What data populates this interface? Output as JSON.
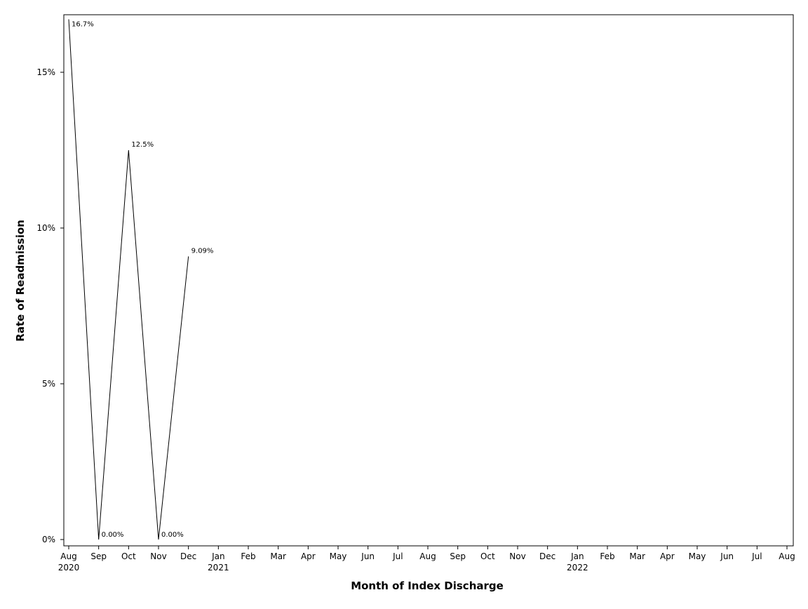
{
  "chart_data": {
    "type": "line",
    "xlabel": "Month of Index Discharge",
    "ylabel": "Rate of Readmission",
    "x_ticks": [
      {
        "month": "Aug",
        "year": "2020"
      },
      {
        "month": "Sep",
        "year": ""
      },
      {
        "month": "Oct",
        "year": ""
      },
      {
        "month": "Nov",
        "year": ""
      },
      {
        "month": "Dec",
        "year": ""
      },
      {
        "month": "Jan",
        "year": "2021"
      },
      {
        "month": "Feb",
        "year": ""
      },
      {
        "month": "Mar",
        "year": ""
      },
      {
        "month": "Apr",
        "year": ""
      },
      {
        "month": "May",
        "year": ""
      },
      {
        "month": "Jun",
        "year": ""
      },
      {
        "month": "Jul",
        "year": ""
      },
      {
        "month": "Aug",
        "year": ""
      },
      {
        "month": "Sep",
        "year": ""
      },
      {
        "month": "Oct",
        "year": ""
      },
      {
        "month": "Nov",
        "year": ""
      },
      {
        "month": "Dec",
        "year": ""
      },
      {
        "month": "Jan",
        "year": "2022"
      },
      {
        "month": "Feb",
        "year": ""
      },
      {
        "month": "Mar",
        "year": ""
      },
      {
        "month": "Apr",
        "year": ""
      },
      {
        "month": "May",
        "year": ""
      },
      {
        "month": "Jun",
        "year": ""
      },
      {
        "month": "Jul",
        "year": ""
      },
      {
        "month": "Aug",
        "year": ""
      }
    ],
    "y_ticks": [
      {
        "value": 0,
        "label": "0%"
      },
      {
        "value": 5,
        "label": "5%"
      },
      {
        "value": 10,
        "label": "10%"
      },
      {
        "value": 15,
        "label": "15%"
      }
    ],
    "ylim": [
      0,
      16.7
    ],
    "xlim": [
      "2020-08",
      "2022-08"
    ],
    "series": [
      {
        "points": [
          {
            "x": "2020-08",
            "y": 16.7,
            "label": "16.7%"
          },
          {
            "x": "2020-09",
            "y": 0.0,
            "label": "0.00%"
          },
          {
            "x": "2020-10",
            "y": 12.5,
            "label": "12.5%"
          },
          {
            "x": "2020-11",
            "y": 0.0,
            "label": "0.00%"
          },
          {
            "x": "2020-12",
            "y": 9.09,
            "label": "9.09%"
          }
        ]
      }
    ],
    "grid": false,
    "legend": "none",
    "line_color": "#000000"
  }
}
